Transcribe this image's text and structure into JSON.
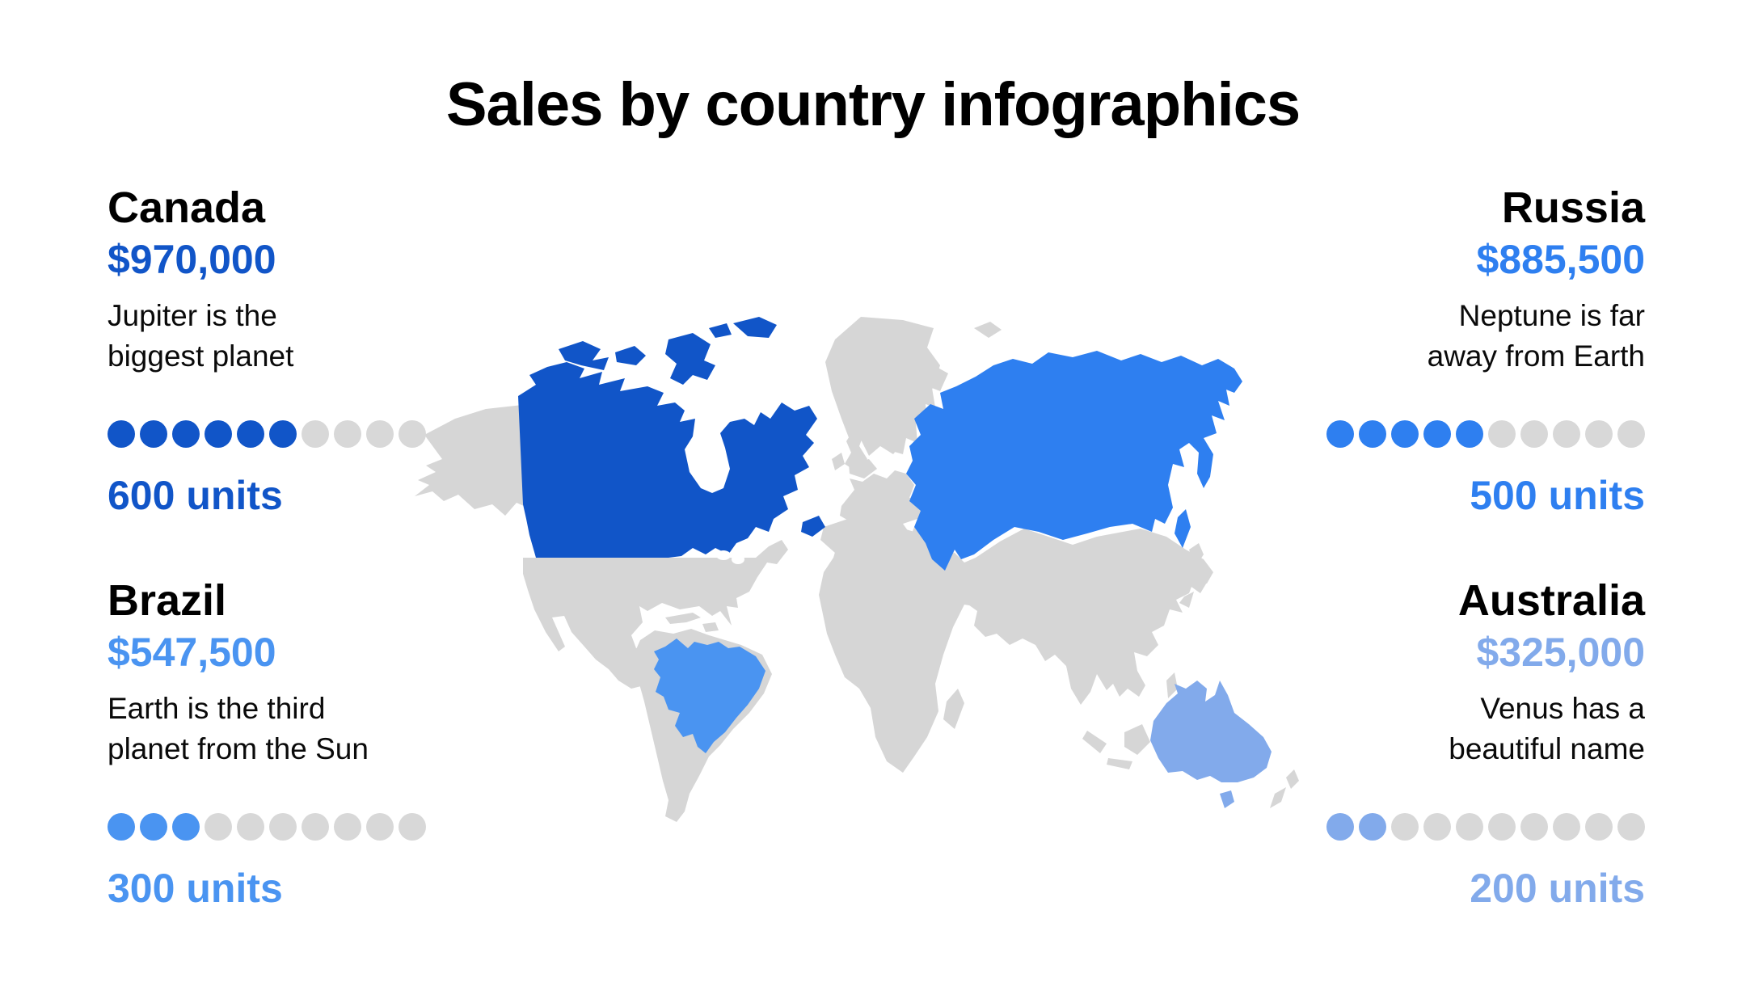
{
  "title": "Sales by country infographics",
  "dot_inactive_color": "#D8D8D8",
  "map": {
    "name": "world-map",
    "land_color": "#D6D6D6",
    "highlight_colors": {
      "canada": "#1155C8",
      "russia": "#2E7FF0",
      "brazil": "#4A94F1",
      "australia": "#82AAEB"
    }
  },
  "countries": [
    {
      "id": "canada",
      "name": "Canada",
      "value": "$970,000",
      "desc_line1": "Jupiter is the",
      "desc_line2": "biggest planet",
      "units": "600 units",
      "dots_filled": 6,
      "dots_total": 10,
      "color": "#1155C8"
    },
    {
      "id": "russia",
      "name": "Russia",
      "value": "$885,500",
      "desc_line1": "Neptune is far",
      "desc_line2": "away from Earth",
      "units": "500 units",
      "dots_filled": 5,
      "dots_total": 10,
      "color": "#2E7FF0"
    },
    {
      "id": "brazil",
      "name": "Brazil",
      "value": "$547,500",
      "desc_line1": "Earth is the third",
      "desc_line2": "planet from the Sun",
      "units": "300 units",
      "dots_filled": 3,
      "dots_total": 10,
      "color": "#4A94F1"
    },
    {
      "id": "australia",
      "name": "Australia",
      "value": "$325,000",
      "desc_line1": "Venus has a",
      "desc_line2": "beautiful name",
      "units": "200 units",
      "dots_filled": 2,
      "dots_total": 10,
      "color": "#82AAEB"
    }
  ],
  "chart_data": {
    "type": "table",
    "title": "Sales by country infographics",
    "categories": [
      "Canada",
      "Russia",
      "Brazil",
      "Australia"
    ],
    "series": [
      {
        "name": "Sales ($)",
        "values": [
          970000,
          885500,
          547500,
          325000
        ]
      },
      {
        "name": "Units",
        "values": [
          600,
          500,
          300,
          200
        ]
      },
      {
        "name": "Dots filled (of 10)",
        "values": [
          6,
          5,
          3,
          2
        ]
      }
    ],
    "annotations": [
      "Jupiter is the biggest planet",
      "Neptune is far away from Earth",
      "Earth is the third planet from the Sun",
      "Venus has a beautiful name"
    ],
    "legend_position": "none",
    "notes": "World map choropleth: Canada, Russia, Brazil, Australia highlighted in descending blue intensity; all other land gray."
  }
}
